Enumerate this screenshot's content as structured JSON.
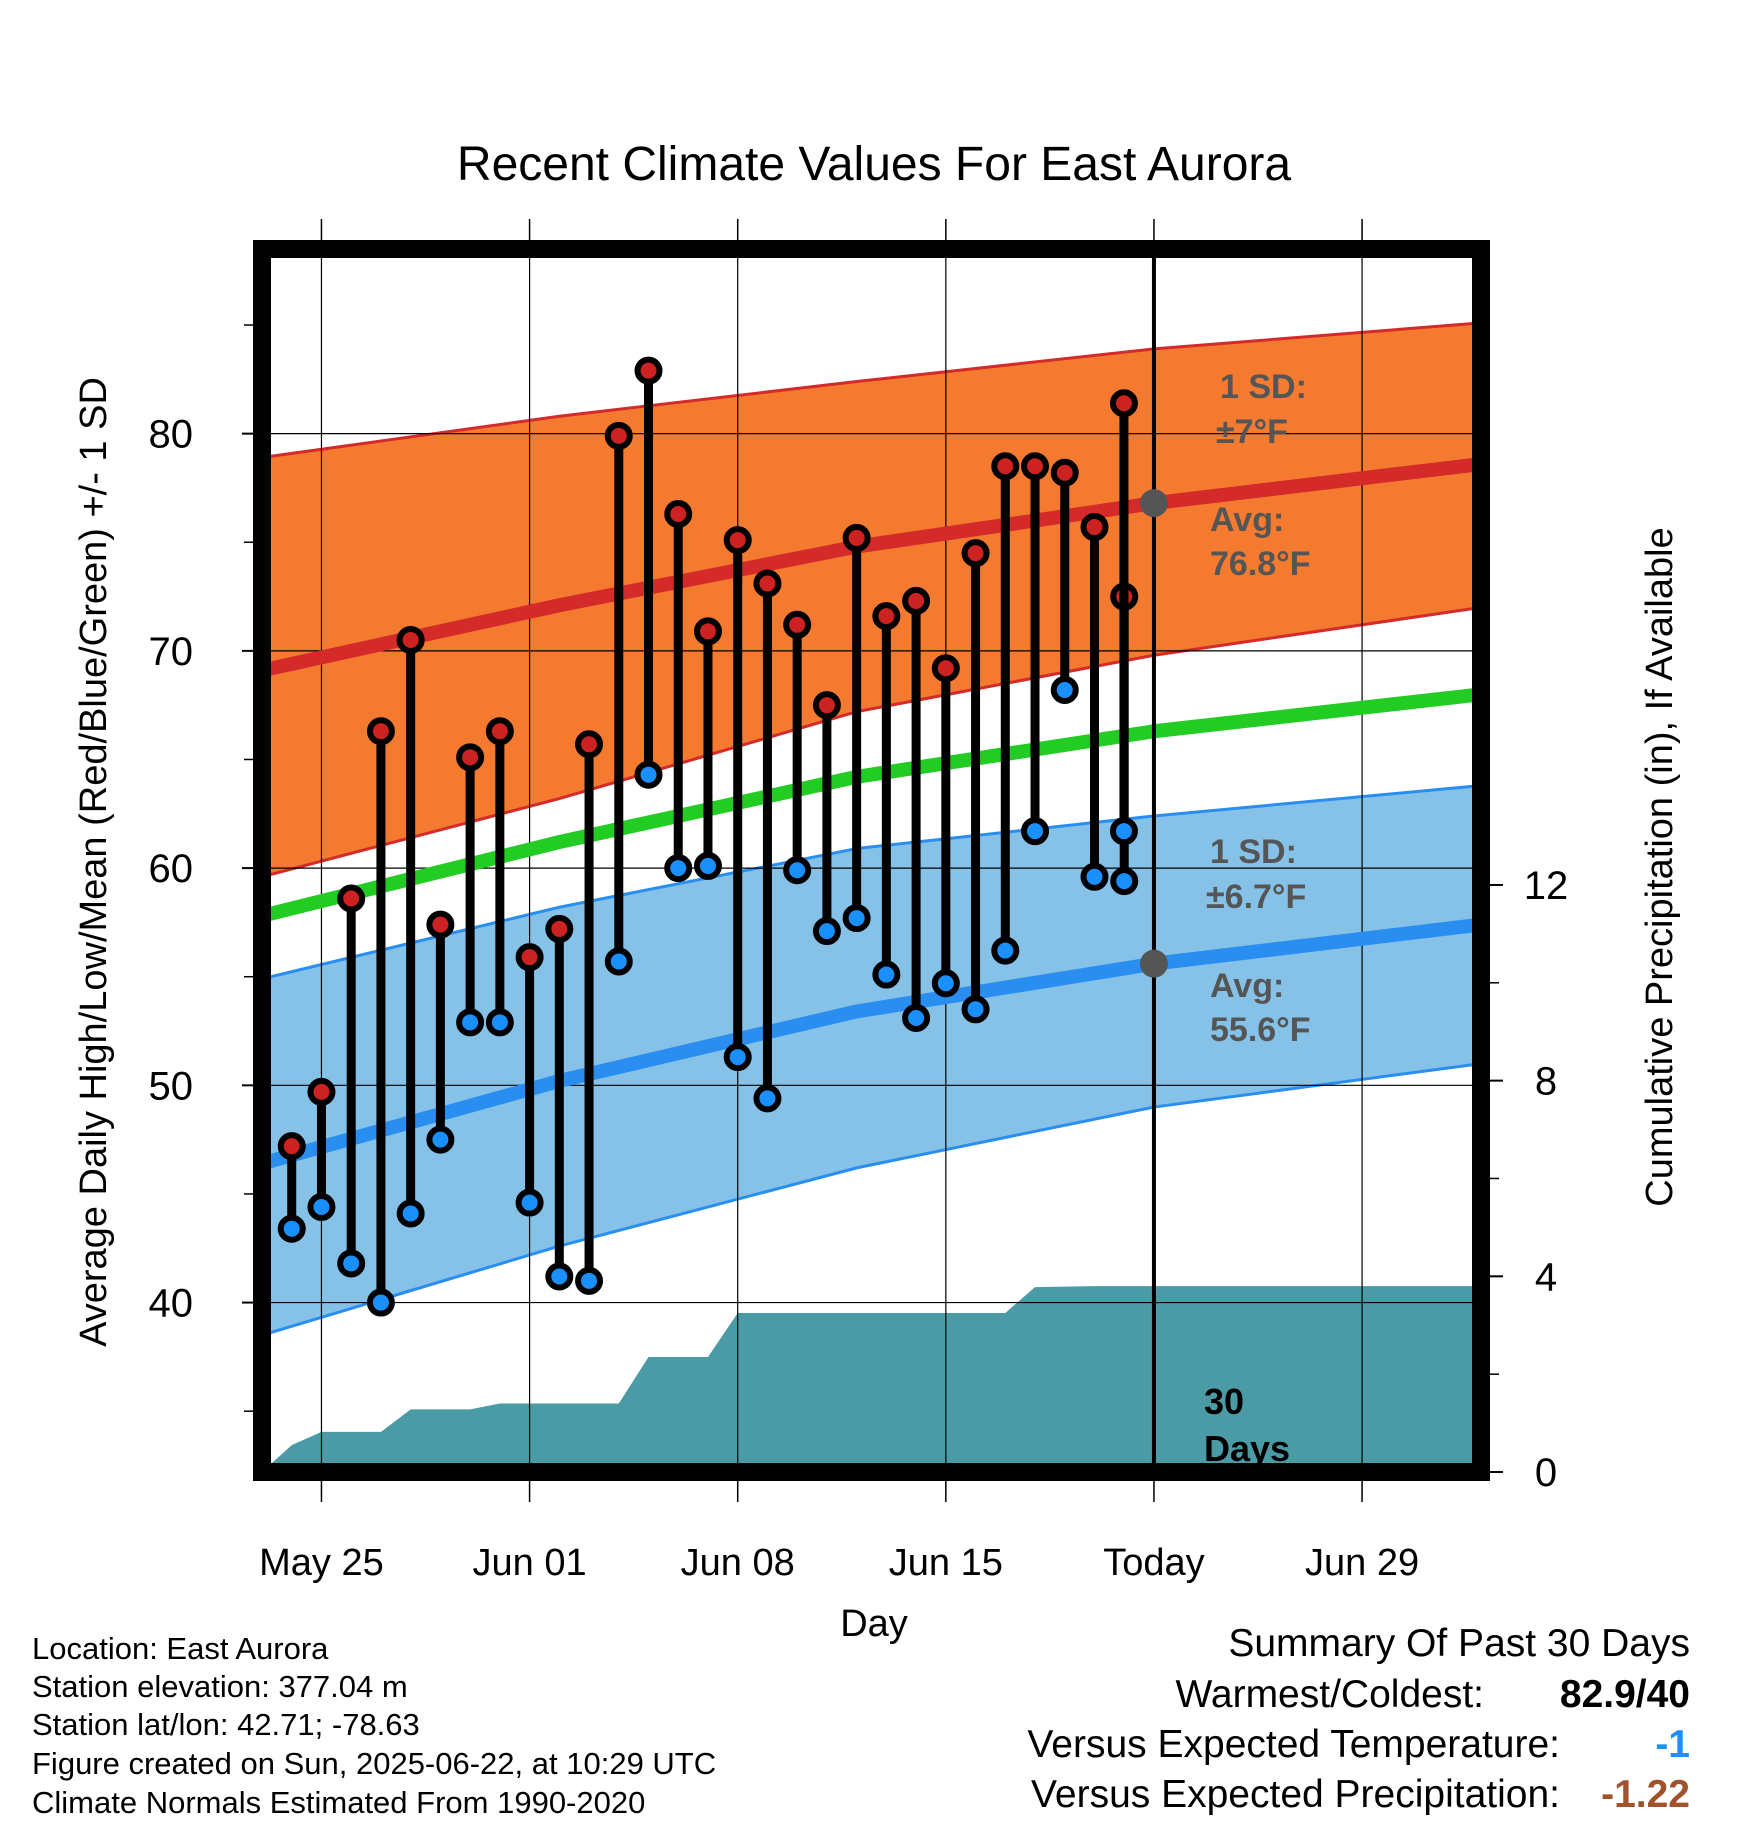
{
  "chart_data": {
    "type": "line",
    "title": "Recent Climate Values For East Aurora",
    "xlabel": "Day",
    "ylabel_left": "Average Daily High/Low/Mean (Red/Blue/Green) +/- 1 SD",
    "ylabel_right": "Cumulative Precipitation (in), If Available",
    "y_ticks_left": [
      "40",
      "50",
      "60",
      "70",
      "80"
    ],
    "y_ticks_right": [
      "0",
      "4",
      "8",
      "12"
    ],
    "x_ticks": [
      "May 25",
      "Jun 01",
      "Jun 08",
      "Jun 15",
      "Today",
      "Jun 29"
    ],
    "ylim_left": [
      32.2,
      88.5
    ],
    "ylim_right": [
      0,
      25
    ],
    "x_domain": [
      "2025-05-23",
      "2025-07-03"
    ],
    "today": "2025-06-22",
    "grid": true,
    "normal_high": {
      "x": [
        "2025-05-23",
        "2025-06-02",
        "2025-06-12",
        "2025-06-22",
        "2025-07-03"
      ],
      "mean": [
        69.1,
        72.1,
        74.8,
        76.8,
        78.6
      ],
      "sd_upper": [
        78.9,
        80.8,
        82.4,
        83.9,
        85.1
      ],
      "sd_lower": [
        59.6,
        63.2,
        67.2,
        69.8,
        72.0
      ]
    },
    "normal_mean": {
      "x": [
        "2025-05-23",
        "2025-06-02",
        "2025-06-12",
        "2025-06-22",
        "2025-07-03"
      ],
      "values": [
        57.8,
        61.2,
        64.2,
        66.3,
        68.0
      ]
    },
    "normal_low": {
      "x": [
        "2025-05-23",
        "2025-06-02",
        "2025-06-12",
        "2025-06-22",
        "2025-07-03"
      ],
      "mean": [
        46.4,
        50.2,
        53.4,
        55.6,
        57.4
      ],
      "sd_upper": [
        54.9,
        58.2,
        60.9,
        62.4,
        63.8
      ],
      "sd_lower": [
        38.5,
        42.6,
        46.2,
        49.0,
        51.0
      ]
    },
    "daily": {
      "dates": [
        "2025-05-24",
        "2025-05-25",
        "2025-05-26",
        "2025-05-27",
        "2025-05-28",
        "2025-05-29",
        "2025-05-30",
        "2025-05-31",
        "2025-06-01",
        "2025-06-02",
        "2025-06-03",
        "2025-06-04",
        "2025-06-05",
        "2025-06-06",
        "2025-06-07",
        "2025-06-08",
        "2025-06-09",
        "2025-06-10",
        "2025-06-11",
        "2025-06-12",
        "2025-06-13",
        "2025-06-14",
        "2025-06-15",
        "2025-06-16",
        "2025-06-17",
        "2025-06-18",
        "2025-06-19",
        "2025-06-20",
        "2025-06-21"
      ],
      "highs": [
        47.2,
        49.7,
        58.6,
        66.3,
        70.5,
        57.4,
        65.1,
        66.3,
        55.9,
        57.2,
        65.7,
        79.9,
        82.9,
        76.3,
        70.9,
        75.1,
        73.1,
        71.2,
        67.5,
        75.2,
        71.6,
        72.3,
        69.2,
        74.5,
        78.5,
        78.5,
        78.2,
        75.7,
        72.5
      ],
      "lows": [
        43.4,
        44.4,
        41.8,
        40.0,
        44.1,
        47.5,
        52.9,
        52.9,
        44.6,
        41.2,
        41.0,
        55.7,
        64.3,
        60.0,
        60.1,
        51.3,
        49.4,
        59.9,
        57.1,
        57.7,
        55.1,
        53.1,
        54.7,
        53.5,
        56.2,
        61.7,
        68.2,
        59.6,
        59.4
      ],
      "extra_high": {
        "date": "2025-06-22",
        "high": 81.4,
        "low": 61.7
      }
    },
    "precip_cumulative": {
      "x": [
        "2025-05-23",
        "2025-05-24",
        "2025-05-25",
        "2025-05-27",
        "2025-05-28",
        "2025-05-30",
        "2025-05-31",
        "2025-06-04",
        "2025-06-05",
        "2025-06-07",
        "2025-06-08",
        "2025-06-09",
        "2025-06-17",
        "2025-06-18",
        "2025-06-20",
        "2025-07-03"
      ],
      "values": [
        0.0,
        0.55,
        0.82,
        0.82,
        1.28,
        1.28,
        1.4,
        1.4,
        2.35,
        2.35,
        3.25,
        3.25,
        3.25,
        3.78,
        3.8,
        3.8
      ]
    },
    "annotations": {
      "high_sd_label": "1 SD:",
      "high_sd_value": "±7°F",
      "high_avg_label": "Avg:",
      "high_avg_value": "76.8°F",
      "low_sd_label": "1 SD:",
      "low_sd_value": "±6.7°F",
      "low_avg_label": "Avg:",
      "low_avg_value": "55.6°F",
      "days_label_1": "30",
      "days_label_2": "Days"
    }
  },
  "colors": {
    "high_band": "#f47a30",
    "high_line": "#d42a2a",
    "mean_line": "#22cc22",
    "low_band": "#86c2e8",
    "low_line": "#2a8ef0",
    "precip": "#4a9ba5",
    "high_marker": "#cc2222",
    "low_marker": "#1a90ff"
  },
  "info": {
    "location": "Location: East Aurora",
    "elevation": "Station elevation: 377.04 m",
    "latlon": "Station lat/lon: 42.71; -78.63",
    "created": "Figure created on Sun, 2025-06-22, at 10:29 UTC",
    "normals": "Climate Normals Estimated From 1990-2020"
  },
  "summary": {
    "title": "Summary Of Past 30 Days",
    "warmest_coldest_label": "Warmest/Coldest:",
    "warmest_coldest_value": "82.9/40",
    "temp_label": "Versus Expected Temperature:",
    "temp_value": "-1",
    "temp_color": "#1a90ff",
    "precip_label": "Versus Expected Precipitation:",
    "precip_value": "-1.22",
    "precip_color": "#a0522d"
  }
}
